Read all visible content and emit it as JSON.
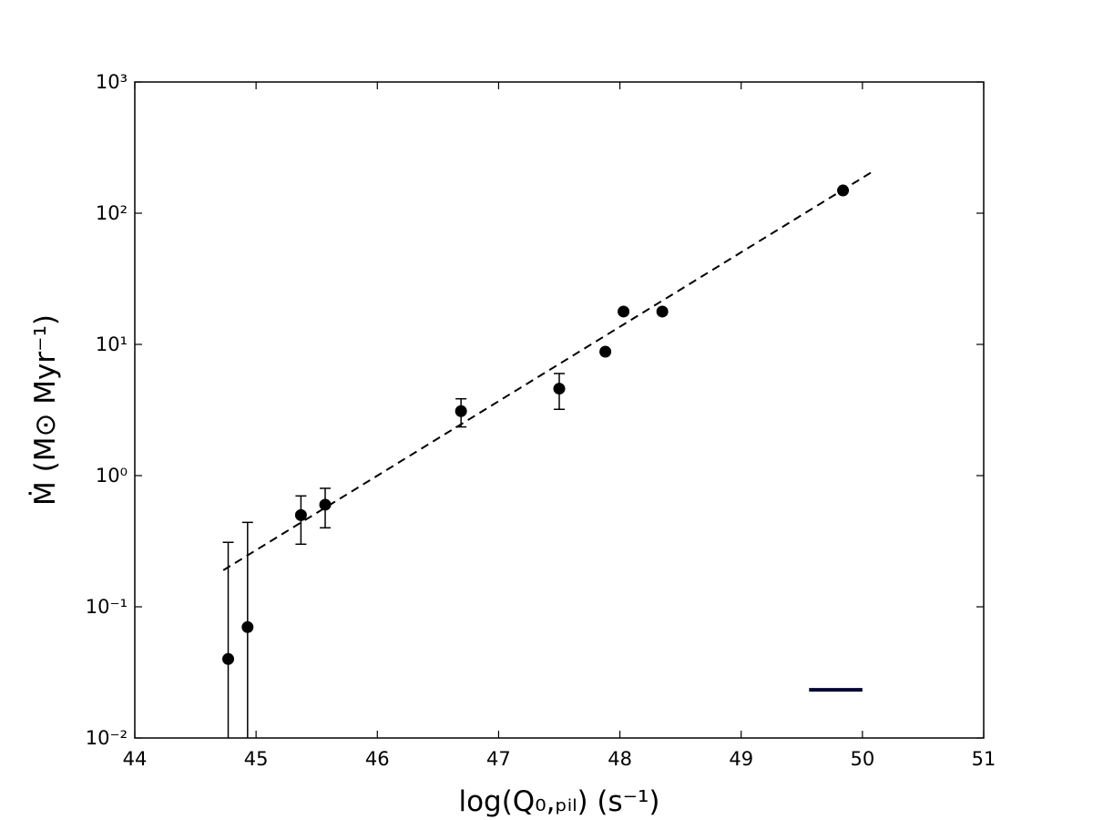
{
  "chart_data": {
    "type": "scatter",
    "xlabel": "log(Q₀,ₚᵢₗ) (s⁻¹)",
    "ylabel": "Ṁ (M⊙ Myr⁻¹)",
    "xlim": [
      44,
      51
    ],
    "xticks": [
      44,
      45,
      46,
      47,
      48,
      49,
      50,
      51
    ],
    "ylim": [
      0.01,
      1000
    ],
    "log_y": true,
    "yticks": [
      {
        "value": 0.01,
        "label": "10⁻²"
      },
      {
        "value": 0.1,
        "label": "10⁻¹"
      },
      {
        "value": 1,
        "label": "10⁰"
      },
      {
        "value": 10,
        "label": "10¹"
      },
      {
        "value": 100,
        "label": "10²"
      },
      {
        "value": 1000,
        "label": "10³"
      }
    ],
    "grid": false,
    "series": [
      {
        "kind": "scatter",
        "color": "#000000",
        "x": [
          44.77,
          44.93,
          45.37,
          45.57,
          46.69,
          47.5,
          47.88,
          48.03,
          48.35,
          49.84
        ],
        "values": [
          0.04,
          0.07,
          0.5,
          0.6,
          3.1,
          4.6,
          8.8,
          17.8,
          17.8,
          149
        ],
        "errors": [
          0.27,
          0.37,
          0.2,
          0.2,
          0.75,
          1.4,
          null,
          null,
          null,
          null
        ]
      },
      {
        "kind": "line",
        "color": "#000000",
        "dashed": true,
        "x": [
          44.73,
          50.1
        ],
        "values": [
          0.19,
          212
        ]
      },
      {
        "kind": "line",
        "color": "#000033",
        "dashed": false,
        "x": [
          49.56,
          50.0
        ],
        "values": [
          0.0233,
          0.0233
        ]
      }
    ]
  }
}
